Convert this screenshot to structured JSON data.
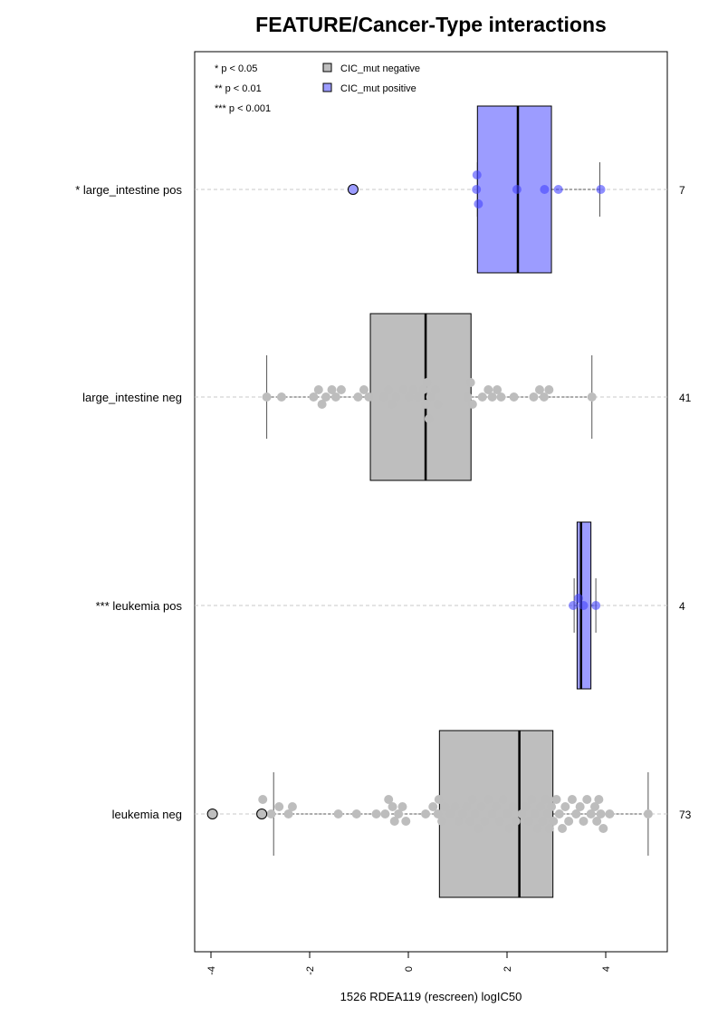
{
  "chart_data": {
    "type": "boxplot",
    "title": "FEATURE/Cancer-Type interactions",
    "xlabel": "1526 RDEA119 (rescreen) logIC50",
    "ylabel": "",
    "xlim": [
      -4.4,
      5.2
    ],
    "x_ticks": [
      -4,
      -2,
      0,
      2,
      4
    ],
    "x_tick_labels": [
      "-4",
      "-2",
      "0",
      "2",
      "4"
    ],
    "grid": false,
    "significance_legend": [
      "* p < 0.05",
      "** p < 0.01",
      "*** p < 0.001"
    ],
    "legend": [
      {
        "label": "CIC_mut negative",
        "color": "#bebebe"
      },
      {
        "label": "CIC_mut positive",
        "color": "#9c9cff"
      }
    ],
    "groups": [
      {
        "label": "* large_intestine pos",
        "n": "7",
        "status": "positive",
        "box": {
          "q1": 1.4,
          "median": 2.22,
          "q3": 2.9,
          "whisker_low": 1.4,
          "whisker_high": 3.88
        },
        "outliers": [
          -1.12
        ],
        "points": [
          1.38,
          1.39,
          1.42,
          2.2,
          2.76,
          3.04,
          3.9
        ]
      },
      {
        "label": "large_intestine neg",
        "n": "41",
        "status": "negative",
        "box": {
          "q1": -0.77,
          "median": 0.35,
          "q3": 1.27,
          "whisker_low": -2.87,
          "whisker_high": 3.72
        },
        "outliers": [],
        "points": [
          -2.87,
          -2.57,
          -1.92,
          -1.82,
          -1.75,
          -1.67,
          -1.55,
          -1.47,
          -1.36,
          -1.02,
          -0.9,
          -0.8,
          -0.5,
          -0.4,
          -0.33,
          -0.25,
          -0.1,
          0.02,
          0.1,
          0.2,
          0.3,
          0.35,
          0.38,
          0.42,
          0.45,
          0.55,
          0.6,
          1.2,
          1.26,
          1.3,
          1.5,
          1.62,
          1.7,
          1.8,
          1.88,
          2.14,
          2.54,
          2.66,
          2.75,
          2.85,
          3.72
        ]
      },
      {
        "label": "*** leukemia pos",
        "n": "4",
        "status": "positive",
        "box": {
          "q1": 3.42,
          "median": 3.5,
          "q3": 3.7,
          "whisker_low": 3.36,
          "whisker_high": 3.8
        },
        "outliers": [],
        "points": [
          3.34,
          3.45,
          3.55,
          3.8
        ]
      },
      {
        "label": "leukemia neg",
        "n": "73",
        "status": "negative",
        "box": {
          "q1": 0.63,
          "median": 2.25,
          "q3": 2.93,
          "whisker_low": -2.73,
          "whisker_high": 4.86
        },
        "outliers": [
          -3.97,
          -2.97
        ],
        "points": [
          -3.0,
          -2.95,
          -2.78,
          -2.62,
          -2.43,
          -2.35,
          -1.42,
          -1.05,
          -0.65,
          -0.47,
          -0.4,
          -0.32,
          -0.28,
          -0.2,
          -0.12,
          -0.05,
          0.35,
          0.5,
          0.6,
          0.62,
          0.68,
          0.75,
          0.85,
          0.95,
          1.02,
          1.1,
          1.18,
          1.25,
          1.3,
          1.35,
          1.42,
          1.48,
          1.55,
          1.62,
          1.7,
          1.78,
          1.85,
          1.92,
          2.0,
          2.05,
          2.12,
          2.18,
          2.3,
          2.38,
          2.44,
          2.5,
          2.56,
          2.62,
          2.68,
          2.72,
          2.78,
          2.82,
          2.86,
          2.9,
          2.94,
          3.0,
          3.06,
          3.12,
          3.18,
          3.25,
          3.32,
          3.4,
          3.48,
          3.55,
          3.62,
          3.7,
          3.78,
          3.82,
          3.86,
          3.9,
          3.95,
          4.08,
          4.86
        ]
      }
    ]
  }
}
